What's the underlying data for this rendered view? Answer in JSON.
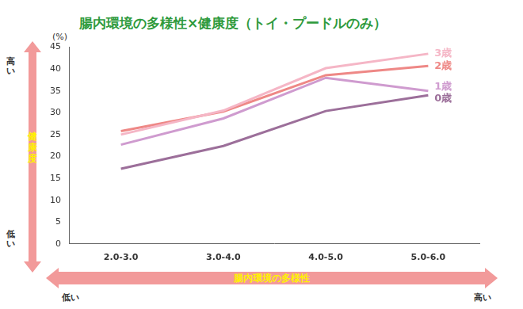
{
  "chart_data": {
    "type": "line",
    "title": "腸内環境の多様性×健康度（トイ・プードルのみ）",
    "xlabel": "腸内環境の多様性",
    "ylabel": "健康度",
    "y_unit_label": "(%)",
    "y_axis_ends": {
      "high": "高い",
      "low": "低い"
    },
    "x_axis_ends": {
      "low": "低い",
      "high": "高い"
    },
    "categories": [
      "2.0-3.0",
      "3.0-4.0",
      "4.0-5.0",
      "5.0-6.0"
    ],
    "series": [
      {
        "name": "3歳",
        "color": "#f5b6c6",
        "values": [
          25.0,
          30.5,
          40.2,
          43.5
        ]
      },
      {
        "name": "2歳",
        "color": "#ee8886",
        "values": [
          25.8,
          30.3,
          38.6,
          40.7
        ]
      },
      {
        "name": "1歳",
        "color": "#cf9bcf",
        "values": [
          22.7,
          28.7,
          38.0,
          35.0
        ]
      },
      {
        "name": "0歳",
        "color": "#9c6f9a",
        "values": [
          17.2,
          22.4,
          30.4,
          34.0
        ]
      }
    ],
    "ylim": [
      0,
      45
    ],
    "yticks": [
      0,
      5,
      10,
      15,
      20,
      25,
      30,
      35,
      40,
      45
    ],
    "grid": false
  }
}
